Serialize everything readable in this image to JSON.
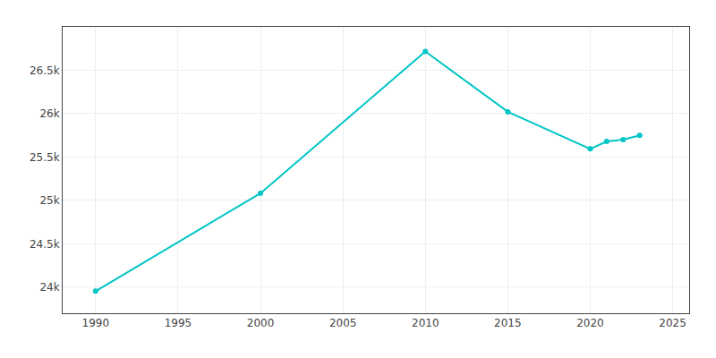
{
  "chart_data": {
    "type": "line",
    "x": [
      1990,
      2000,
      2010,
      2015,
      2020,
      2021,
      2022,
      2023
    ],
    "values": [
      23955,
      25083,
      26717,
      26021,
      25594,
      25680,
      25700,
      25750
    ],
    "color": "#00C5C5",
    "marker": "circle",
    "xlim": [
      1988,
      2026
    ],
    "ylim": [
      23700,
      27000
    ],
    "xticks": [
      1990,
      1995,
      2000,
      2005,
      2010,
      2015,
      2020,
      2025
    ],
    "yticks": [
      {
        "value": 24000,
        "label": "24k"
      },
      {
        "value": 24500,
        "label": "24.5k"
      },
      {
        "value": 25000,
        "label": "25k"
      },
      {
        "value": 25500,
        "label": "25.5k"
      },
      {
        "value": 26000,
        "label": "26k"
      },
      {
        "value": 26500,
        "label": "26.5k"
      }
    ],
    "grid": true
  }
}
